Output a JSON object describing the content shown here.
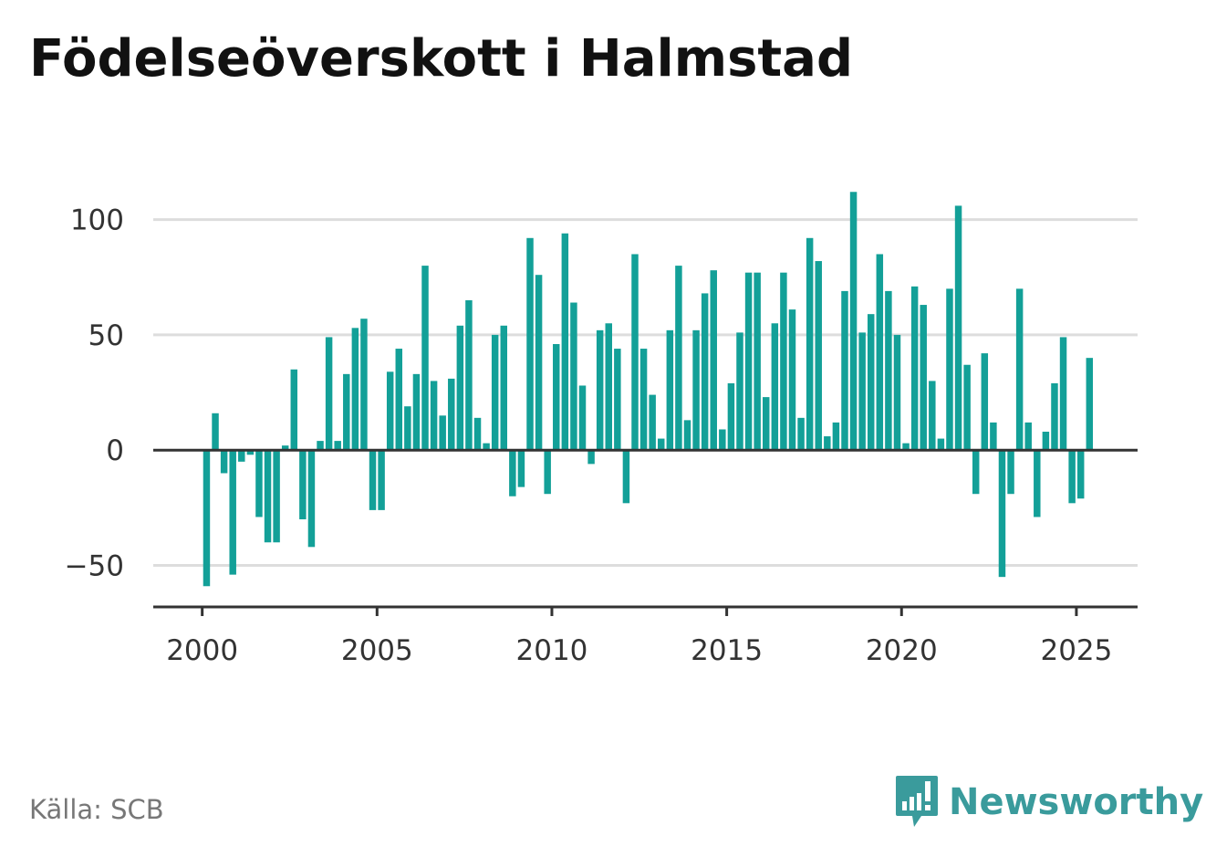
{
  "title": "Födelseöverskott i Halmstad",
  "source": "Källa: SCB",
  "brand": "Newsworthy",
  "colors": {
    "bar": "#13a098",
    "grid": "#dddddd",
    "axis": "#333333",
    "brand": "#3a9b9c"
  },
  "chart_data": {
    "type": "bar",
    "title": "Födelseöverskott i Halmstad",
    "xlabel": "",
    "ylabel": "",
    "x_ticks": [
      "2000",
      "2005",
      "2010",
      "2015",
      "2020",
      "2025"
    ],
    "y_ticks": [
      -50,
      0,
      50,
      100
    ],
    "ylim": [
      -68,
      122
    ],
    "xlim": [
      1998.6,
      2026.75
    ],
    "grid": true,
    "legend": "none",
    "categories": [
      "2000-03",
      "2000-06",
      "2000-09",
      "2000-12",
      "2001-03",
      "2001-06",
      "2001-09",
      "2001-12",
      "2002-03",
      "2002-06",
      "2002-09",
      "2002-12",
      "2003-03",
      "2003-06",
      "2003-09",
      "2003-12",
      "2004-03",
      "2004-06",
      "2004-09",
      "2004-12",
      "2005-03",
      "2005-06",
      "2005-09",
      "2005-12",
      "2006-03",
      "2006-06",
      "2006-09",
      "2006-12",
      "2007-03",
      "2007-06",
      "2007-09",
      "2007-12",
      "2008-03",
      "2008-06",
      "2008-09",
      "2008-12",
      "2009-03",
      "2009-06",
      "2009-09",
      "2009-12",
      "2010-03",
      "2010-06",
      "2010-09",
      "2010-12",
      "2011-03",
      "2011-06",
      "2011-09",
      "2011-12",
      "2012-03",
      "2012-06",
      "2012-09",
      "2012-12",
      "2013-03",
      "2013-06",
      "2013-09",
      "2013-12",
      "2014-03",
      "2014-06",
      "2014-09",
      "2014-12",
      "2015-03",
      "2015-06",
      "2015-09",
      "2015-12",
      "2016-03",
      "2016-06",
      "2016-09",
      "2016-12",
      "2017-03",
      "2017-06",
      "2017-09",
      "2017-12",
      "2018-03",
      "2018-06",
      "2018-09",
      "2018-12",
      "2019-03",
      "2019-06",
      "2019-09",
      "2019-12",
      "2020-03",
      "2020-06",
      "2020-09",
      "2020-12",
      "2021-03",
      "2021-06",
      "2021-09",
      "2021-12",
      "2022-03",
      "2022-06",
      "2022-09",
      "2022-12",
      "2023-03",
      "2023-06",
      "2023-09",
      "2023-12",
      "2024-03",
      "2024-06",
      "2024-09",
      "2024-12",
      "2025-03",
      "2025-06"
    ],
    "values": [
      -59,
      16,
      -10,
      -54,
      -5,
      -2,
      -29,
      -40,
      -40,
      2,
      35,
      -30,
      -42,
      4,
      49,
      4,
      33,
      53,
      57,
      -26,
      -26,
      34,
      44,
      19,
      33,
      80,
      30,
      15,
      31,
      54,
      65,
      14,
      3,
      50,
      54,
      -20,
      -16,
      92,
      76,
      -19,
      46,
      94,
      64,
      28,
      -6,
      52,
      55,
      44,
      -23,
      85,
      44,
      24,
      5,
      52,
      80,
      13,
      52,
      68,
      78,
      9,
      29,
      51,
      77,
      77,
      23,
      55,
      77,
      61,
      14,
      92,
      82,
      6,
      12,
      69,
      112,
      51,
      59,
      85,
      69,
      50,
      3,
      71,
      63,
      30,
      5,
      70,
      106,
      37,
      -19,
      42,
      12,
      -55,
      -19,
      70,
      12,
      -29,
      8,
      29,
      49,
      -23,
      -21,
      40
    ]
  }
}
